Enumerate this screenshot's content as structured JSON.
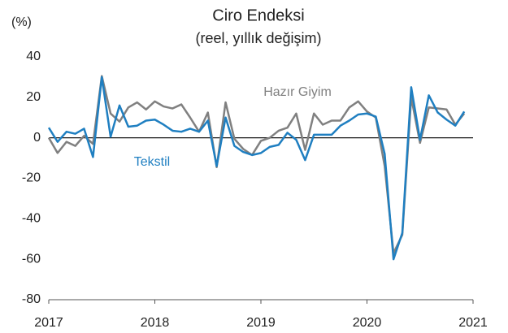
{
  "chart_data": {
    "type": "line",
    "title": "Ciro Endeksi",
    "subtitle": "(reel, yıllık değişim)",
    "y_label": "(%)",
    "x": [
      2017,
      2017.083,
      2017.167,
      2017.25,
      2017.333,
      2017.417,
      2017.5,
      2017.583,
      2017.667,
      2017.75,
      2017.833,
      2017.917,
      2018,
      2018.083,
      2018.167,
      2018.25,
      2018.333,
      2018.417,
      2018.5,
      2018.583,
      2018.667,
      2018.75,
      2018.833,
      2018.917,
      2019,
      2019.083,
      2019.167,
      2019.25,
      2019.333,
      2019.417,
      2019.5,
      2019.583,
      2019.667,
      2019.75,
      2019.833,
      2019.917,
      2020,
      2020.083,
      2020.167,
      2020.25,
      2020.333,
      2020.417,
      2020.5,
      2020.583,
      2020.667,
      2020.75,
      2020.833,
      2020.917
    ],
    "series": [
      {
        "name": "Hazır Giyim",
        "color": "#808080",
        "values": [
          0,
          -7.5,
          -2,
          -4,
          1,
          -3,
          30.5,
          12,
          8,
          15,
          17.5,
          14,
          18,
          15.5,
          14.5,
          16.5,
          10,
          3,
          12.5,
          -14.5,
          17.5,
          -0.5,
          -5.5,
          -8.5,
          -1.5,
          0,
          3.5,
          5,
          12,
          -6,
          12,
          6.5,
          8.5,
          8.5,
          15,
          18,
          13,
          10,
          -14,
          -57,
          -48,
          20,
          -2.5,
          15,
          14.5,
          14,
          6.5,
          12
        ]
      },
      {
        "name": "Tekstil",
        "color": "#1f7fc1",
        "values": [
          5,
          -2,
          3,
          2,
          4.5,
          -9.5,
          30,
          0.5,
          16,
          5.5,
          6,
          8.5,
          9,
          6.5,
          3.5,
          3,
          4.5,
          3,
          8.5,
          -14,
          10,
          -4,
          -7,
          -8.5,
          -7.5,
          -4.5,
          -3.5,
          2.5,
          -1,
          -11,
          1.5,
          1.5,
          1.5,
          6,
          8.5,
          11.5,
          12,
          10.5,
          -8,
          -60,
          -47,
          25,
          -1,
          21,
          12.5,
          9,
          6,
          13
        ]
      }
    ],
    "xlim": [
      2017,
      2021
    ],
    "xticks": [
      2017,
      2018,
      2019,
      2020,
      2021
    ],
    "ylim": [
      -80,
      40
    ],
    "yticks": [
      -80,
      -60,
      -40,
      -20,
      0,
      20,
      40
    ],
    "grid": false
  }
}
